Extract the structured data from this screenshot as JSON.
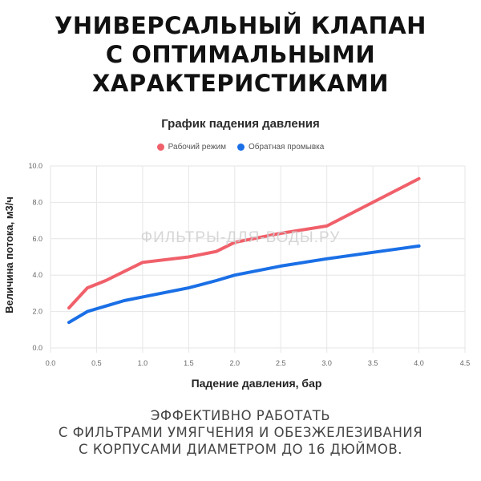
{
  "headline": [
    "УНИВЕРСАЛЬНЫЙ КЛАПАН",
    "С ОПТИМАЛЬНЫМИ",
    "ХАРАКТЕРИСТИКАМИ"
  ],
  "watermark": "ФИЛЬТРЫ-ДЛЯ-ВОДЫ.РУ",
  "footer": [
    "ЭФФЕКТИВНО РАБОТАТЬ",
    "С ФИЛЬТРАМИ УМЯГЧЕНИЯ И ОБЕЗЖЕЛЕЗИВАНИЯ",
    "С КОРПУСАМИ ДИАМЕТРОМ ДО 16 ДЮЙМОВ."
  ],
  "colors": {
    "work": "#f0606a",
    "backwash": "#1a6fe6",
    "grid": "#e6e6e6"
  },
  "chart_data": {
    "type": "line",
    "title": "График падения давления",
    "xlabel": "Падение давления, бар",
    "ylabel": "Величина потока, м3/ч",
    "xlim": [
      0,
      4.5
    ],
    "ylim": [
      0,
      10
    ],
    "xticks": [
      "0.0",
      "0.5",
      "1.0",
      "1.5",
      "2.0",
      "2.5",
      "3.0",
      "3.5",
      "4.0",
      "4.5"
    ],
    "yticks": [
      "0.0",
      "2.0",
      "4.0",
      "6.0",
      "8.0",
      "10.0"
    ],
    "grid": true,
    "legend_position": "top",
    "series": [
      {
        "name": "Рабочий режим",
        "color": "#f0606a",
        "points": [
          [
            0.2,
            2.2
          ],
          [
            0.4,
            3.3
          ],
          [
            0.6,
            3.7
          ],
          [
            1.0,
            4.7
          ],
          [
            1.5,
            5.0
          ],
          [
            1.8,
            5.3
          ],
          [
            2.0,
            5.8
          ],
          [
            2.5,
            6.3
          ],
          [
            3.0,
            6.7
          ],
          [
            3.5,
            8.0
          ],
          [
            4.0,
            9.3
          ]
        ]
      },
      {
        "name": "Обратная промывка",
        "color": "#1a6fe6",
        "points": [
          [
            0.2,
            1.4
          ],
          [
            0.4,
            2.0
          ],
          [
            0.8,
            2.6
          ],
          [
            1.0,
            2.8
          ],
          [
            1.5,
            3.3
          ],
          [
            1.8,
            3.7
          ],
          [
            2.0,
            4.0
          ],
          [
            2.5,
            4.5
          ],
          [
            3.0,
            4.9
          ],
          [
            3.5,
            5.25
          ],
          [
            4.0,
            5.6
          ]
        ]
      }
    ]
  }
}
